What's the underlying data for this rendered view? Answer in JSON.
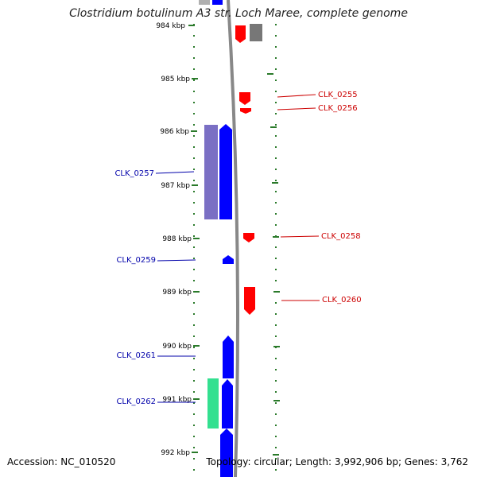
{
  "title": "Clostridium botulinum A3 str. Loch Maree, complete genome",
  "accession": "Accession: NC_010520",
  "topology": "Topology: circular; Length: 3,992,906 bp; Genes: 3,762",
  "ruler_labels": [
    "984 kbp",
    "985 kbp",
    "986 kbp",
    "987 kbp",
    "988 kbp",
    "989 kbp",
    "990 kbp",
    "991 kbp",
    "992 kbp"
  ],
  "genes_forward": [
    {
      "name": "CLK_0255",
      "start_kbp": 984.8,
      "end_kbp": 985.05
    },
    {
      "name": "CLK_0256",
      "start_kbp": 985.05,
      "end_kbp": 985.15
    },
    {
      "name": "CLK_0258",
      "start_kbp": 987.95,
      "end_kbp": 988.1
    },
    {
      "name": "CLK_0260",
      "start_kbp": 988.9,
      "end_kbp": 989.45
    }
  ],
  "genes_reverse": [
    {
      "name": "CLK_0257",
      "start_kbp": 985.9,
      "end_kbp": 987.65
    },
    {
      "name": "CLK_0259",
      "start_kbp": 988.35,
      "end_kbp": 988.5
    },
    {
      "name": "CLK_0261",
      "start_kbp": 989.8,
      "end_kbp": 990.6
    },
    {
      "name": "CLK_0262",
      "start_kbp": 990.6,
      "end_kbp": 991.5
    }
  ],
  "colors": {
    "forward_gene": "#ff0000",
    "reverse_gene": "#0000ff",
    "reverse_label": "#0000aa",
    "forward_label": "#cc0000",
    "cds_shadow": "#7a6fc4",
    "rna_feature": "#33e090",
    "backbone": "#888888",
    "ruler_tick": "#2a7a2a"
  }
}
